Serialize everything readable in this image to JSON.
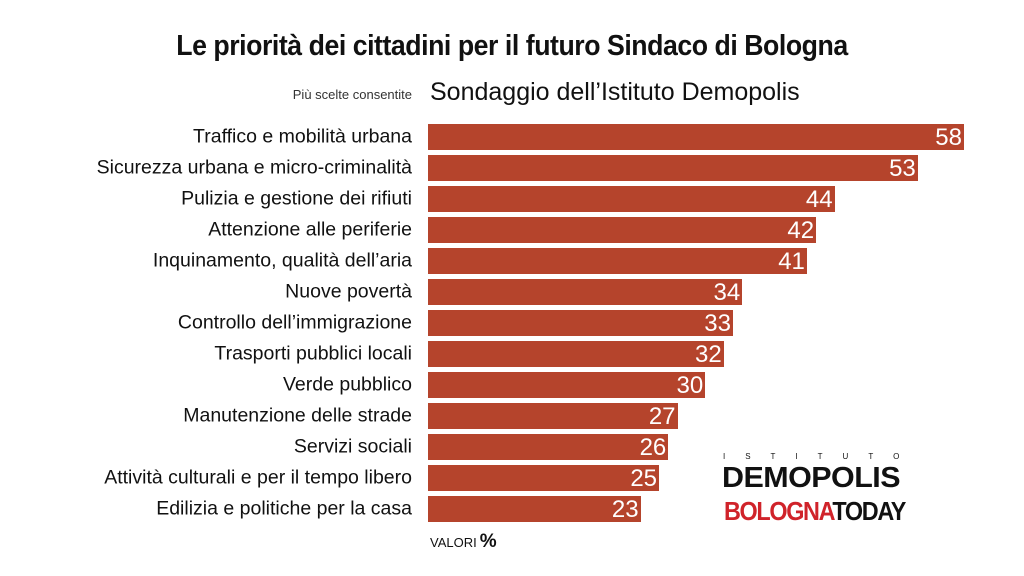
{
  "chart_data": {
    "type": "bar",
    "orientation": "horizontal",
    "title": "Le priorità dei cittadini per il futuro Sindaco di Bologna",
    "subtitle": "Sondaggio dell’Istituto Demopolis",
    "note": "Più scelte consentite",
    "unit_label": "VALORI",
    "unit_symbol": "%",
    "bar_color": "#b5442c",
    "xlim": [
      0,
      58
    ],
    "categories": [
      "Traffico e mobilità urbana",
      "Sicurezza urbana e micro-criminalità",
      "Pulizia e gestione dei rifiuti",
      "Attenzione alle periferie",
      "Inquinamento, qualità dell’aria",
      "Nuove povertà",
      "Controllo dell’immigrazione",
      "Trasporti pubblici locali",
      "Verde pubblico",
      "Manutenzione delle strade",
      "Servizi sociali",
      "Attività culturali e per il tempo libero",
      "Edilizia e politiche per la casa"
    ],
    "values": [
      58,
      53,
      44,
      42,
      41,
      34,
      33,
      32,
      30,
      27,
      26,
      25,
      23
    ]
  },
  "logos": {
    "demopolis_top": "ISTITUTO",
    "demopolis_name": "DEMOPOLIS",
    "bologna_part1": "BOLOGNA",
    "bologna_part2": "TODAY"
  }
}
